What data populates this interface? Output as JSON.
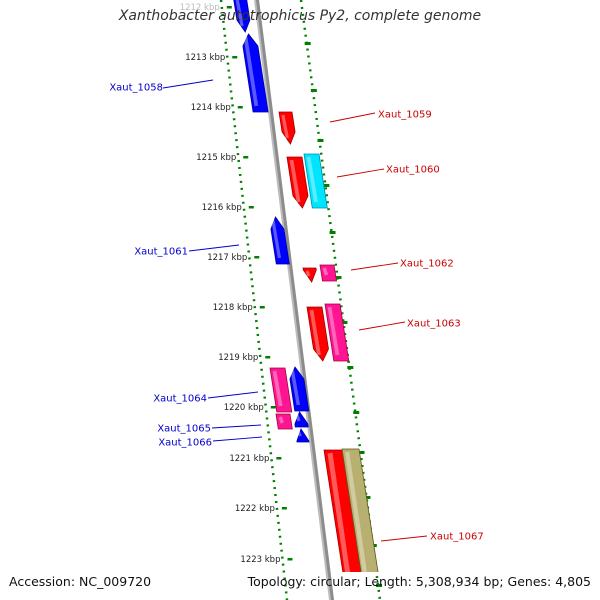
{
  "title": "Xanthobacter autotrophicus Py2, complete genome",
  "accession": "Accession: NC_009720",
  "topology": "Topology: circular; Length: 5,308,934 bp; Genes: 4,805",
  "colors": {
    "backbone": "#8c8c8c",
    "ticks": "#008000",
    "reverse_strand": "#0000ff",
    "forward_strand": "#ff0000",
    "magenta": "#ff1493",
    "cyan": "#00e5ff",
    "khaki": "#b8b070",
    "label_left": "#0000cc",
    "label_right": "#cc0000"
  },
  "ruler": {
    "unit": "kbp",
    "labels": [
      "1212 kbp",
      "1213 kbp",
      "1214 kbp",
      "1215 kbp",
      "1216 kbp",
      "1217 kbp",
      "1218 kbp",
      "1219 kbp",
      "1220 kbp",
      "1221 kbp",
      "1222 kbp",
      "1223 kbp"
    ]
  },
  "genes": [
    {
      "label": "",
      "color": "#0000ff"
    },
    {
      "label": "Xaut_1058",
      "color": "#0000ff"
    },
    {
      "label": "Xaut_1059",
      "color": "#ff0000"
    },
    {
      "label": "Xaut_1060",
      "color": "#ff0000"
    },
    {
      "label": "",
      "color": "#00e5ff"
    },
    {
      "label": "Xaut_1061",
      "color": "#0000ff"
    },
    {
      "label": "Xaut_1062",
      "color": "#ff0000"
    },
    {
      "label": "",
      "color": "#ff1493"
    },
    {
      "label": "Xaut_1063",
      "color": "#ff0000"
    },
    {
      "label": "",
      "color": "#ff1493"
    },
    {
      "label": "Xaut_1064",
      "color": "#0000ff"
    },
    {
      "label": "",
      "color": "#ff1493"
    },
    {
      "label": "Xaut_1065",
      "color": "#0000ff"
    },
    {
      "label": "",
      "color": "#ff1493"
    },
    {
      "label": "Xaut_1066",
      "color": "#0000ff"
    },
    {
      "label": "Xaut_1067",
      "color": "#ff0000"
    },
    {
      "label": "",
      "color": "#b8b070"
    }
  ]
}
